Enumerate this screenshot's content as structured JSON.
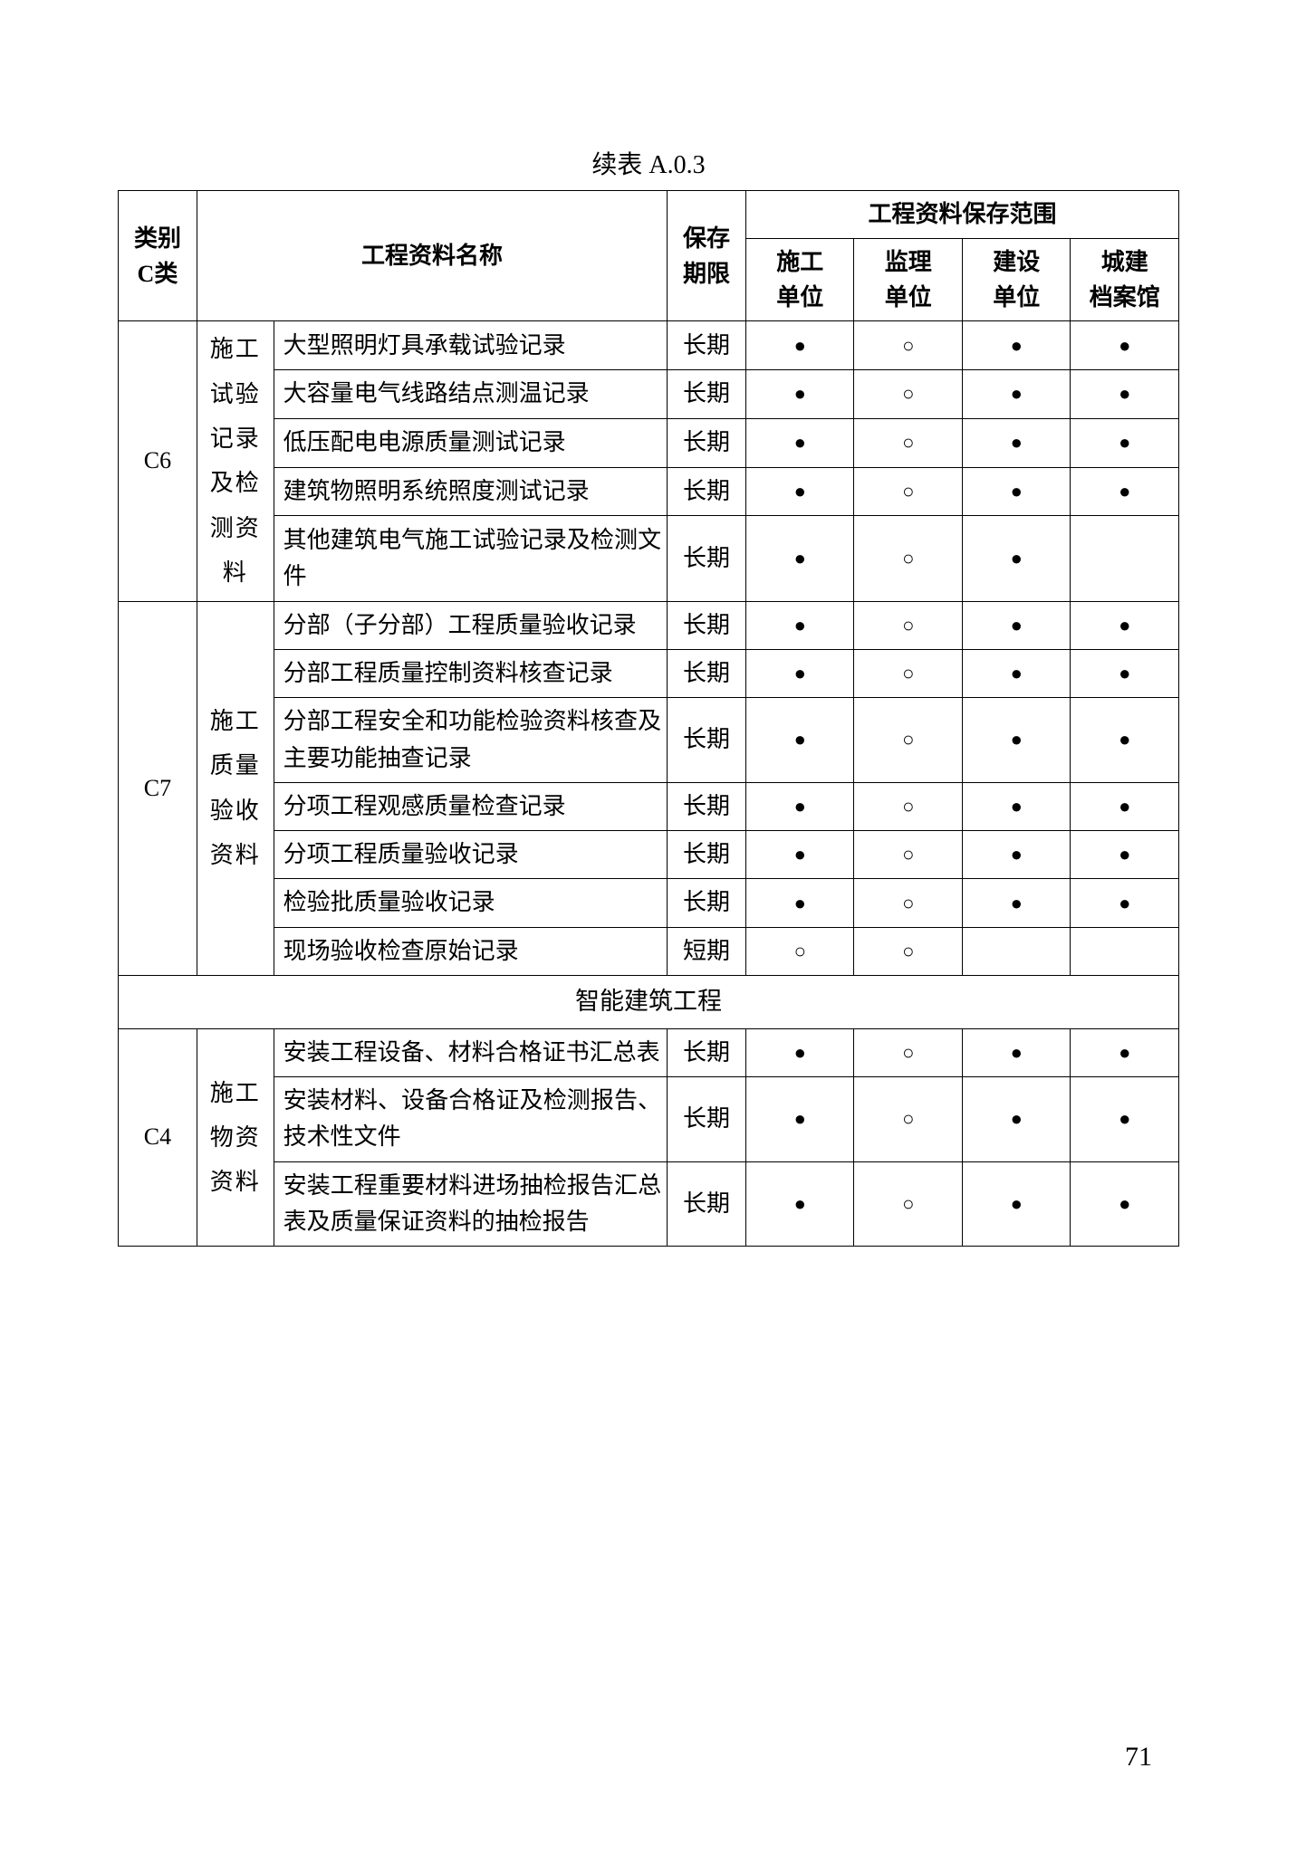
{
  "caption": "续表 A.0.3",
  "page_number": "71",
  "marks": {
    "filled": "●",
    "hollow": "○",
    "blank": ""
  },
  "header": {
    "category": "类别\nC类",
    "doc_name": "工程资料名称",
    "period": "保存\n期限",
    "scope": "工程资料保存范围",
    "units": [
      "施工\n单位",
      "监理\n单位",
      "建设\n单位",
      "城建\n档案馆"
    ]
  },
  "groups": [
    {
      "category": "C6",
      "sub_label": "施工试验记录及检测资料",
      "rows": [
        {
          "name": "大型照明灯具承载试验记录",
          "period": "长期",
          "marks": [
            "filled",
            "hollow",
            "filled",
            "filled"
          ]
        },
        {
          "name": "大容量电气线路结点测温记录",
          "period": "长期",
          "marks": [
            "filled",
            "hollow",
            "filled",
            "filled"
          ]
        },
        {
          "name": "低压配电电源质量测试记录",
          "period": "长期",
          "marks": [
            "filled",
            "hollow",
            "filled",
            "filled"
          ]
        },
        {
          "name": "建筑物照明系统照度测试记录",
          "period": "长期",
          "marks": [
            "filled",
            "hollow",
            "filled",
            "filled"
          ]
        },
        {
          "name": "其他建筑电气施工试验记录及检测文件",
          "period": "长期",
          "marks": [
            "filled",
            "hollow",
            "filled",
            "blank"
          ]
        }
      ]
    },
    {
      "category": "C7",
      "sub_label": "施工质量验收资料",
      "rows": [
        {
          "name": "分部（子分部）工程质量验收记录",
          "period": "长期",
          "marks": [
            "filled",
            "hollow",
            "filled",
            "filled"
          ]
        },
        {
          "name": "分部工程质量控制资料核查记录",
          "period": "长期",
          "marks": [
            "filled",
            "hollow",
            "filled",
            "filled"
          ]
        },
        {
          "name": "分部工程安全和功能检验资料核查及主要功能抽查记录",
          "period": "长期",
          "marks": [
            "filled",
            "hollow",
            "filled",
            "filled"
          ]
        },
        {
          "name": "分项工程观感质量检查记录",
          "period": "长期",
          "marks": [
            "filled",
            "hollow",
            "filled",
            "filled"
          ]
        },
        {
          "name": "分项工程质量验收记录",
          "period": "长期",
          "marks": [
            "filled",
            "hollow",
            "filled",
            "filled"
          ]
        },
        {
          "name": "检验批质量验收记录",
          "period": "长期",
          "marks": [
            "filled",
            "hollow",
            "filled",
            "filled"
          ]
        },
        {
          "name": "现场验收检查原始记录",
          "period": "短期",
          "marks": [
            "hollow",
            "hollow",
            "blank",
            "blank"
          ]
        }
      ]
    }
  ],
  "section_title": "智能建筑工程",
  "group_c4": {
    "category": "C4",
    "sub_label": "施工物资资料",
    "rows": [
      {
        "name": "安装工程设备、材料合格证书汇总表",
        "period": "长期",
        "marks": [
          "filled",
          "hollow",
          "filled",
          "filled"
        ]
      },
      {
        "name": "安装材料、设备合格证及检测报告、技术性文件",
        "period": "长期",
        "marks": [
          "filled",
          "hollow",
          "filled",
          "filled"
        ]
      },
      {
        "name": "安装工程重要材料进场抽检报告汇总表及质量保证资料的抽检报告",
        "period": "长期",
        "marks": [
          "filled",
          "hollow",
          "filled",
          "filled"
        ]
      }
    ]
  }
}
